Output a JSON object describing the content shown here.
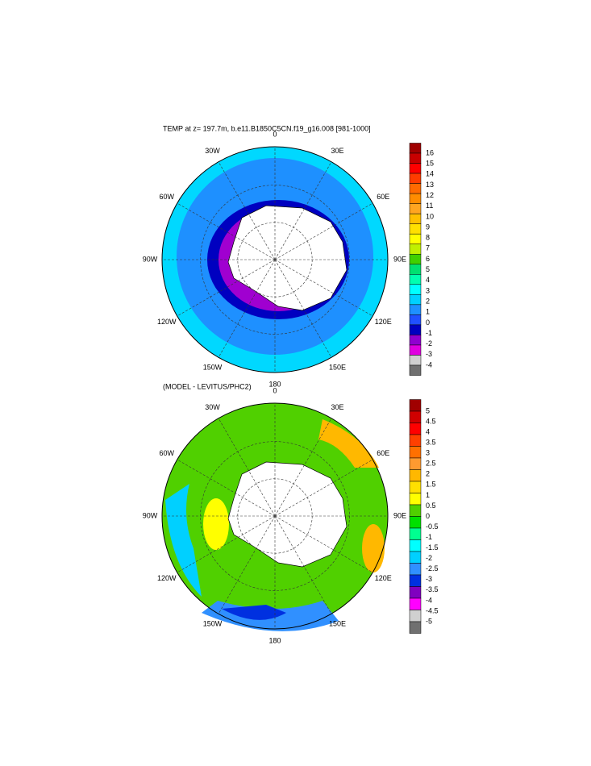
{
  "panels": [
    {
      "title": "TEMP at z= 197.7m, b.e11.B1850C5CN.f19_g16.008 [981-1000]",
      "longitude_labels": [
        "0",
        "30E",
        "60E",
        "90E",
        "120E",
        "150E",
        "180",
        "150W",
        "120W",
        "90W",
        "60W",
        "30W"
      ],
      "colorbar": {
        "labels": [
          16,
          15,
          14,
          13,
          12,
          11,
          10,
          9,
          8,
          7,
          6,
          5,
          4,
          3,
          2,
          1,
          0,
          -1,
          -2,
          -3,
          -4
        ],
        "colors": [
          "#a00000",
          "#c80000",
          "#ff0000",
          "#ff3c00",
          "#ff6a00",
          "#ff8c00",
          "#ffa520",
          "#ffc000",
          "#ffe000",
          "#ffff00",
          "#c0f000",
          "#40d000",
          "#00e070",
          "#00ffb0",
          "#00ffff",
          "#00d0ff",
          "#1e90ff",
          "#2050ff",
          "#0000c0",
          "#9000d0",
          "#e000e0",
          "#d0d0d0",
          "#707070"
        ]
      }
    },
    {
      "title": "(MODEL - LEVITUS/PHC2)",
      "longitude_labels": [
        "0",
        "30E",
        "60E",
        "90E",
        "120E",
        "150E",
        "180",
        "150W",
        "120W",
        "90W",
        "60W",
        "30W"
      ],
      "colorbar": {
        "labels": [
          5,
          4.5,
          4,
          3.5,
          3,
          2.5,
          2,
          1.5,
          1,
          0.5,
          0,
          -0.5,
          -1,
          -1.5,
          -2,
          -2.5,
          -3,
          -3.5,
          -4,
          -4.5,
          -5
        ],
        "colors": [
          "#a00000",
          "#d00000",
          "#ff0000",
          "#ff4000",
          "#ff7000",
          "#ff9a30",
          "#ffb800",
          "#ffe000",
          "#ffff00",
          "#50d000",
          "#00e000",
          "#00ff90",
          "#00ffff",
          "#00d0ff",
          "#3090ff",
          "#0030e0",
          "#8000c0",
          "#ff00ff",
          "#d0d0d0",
          "#707070"
        ]
      }
    }
  ]
}
